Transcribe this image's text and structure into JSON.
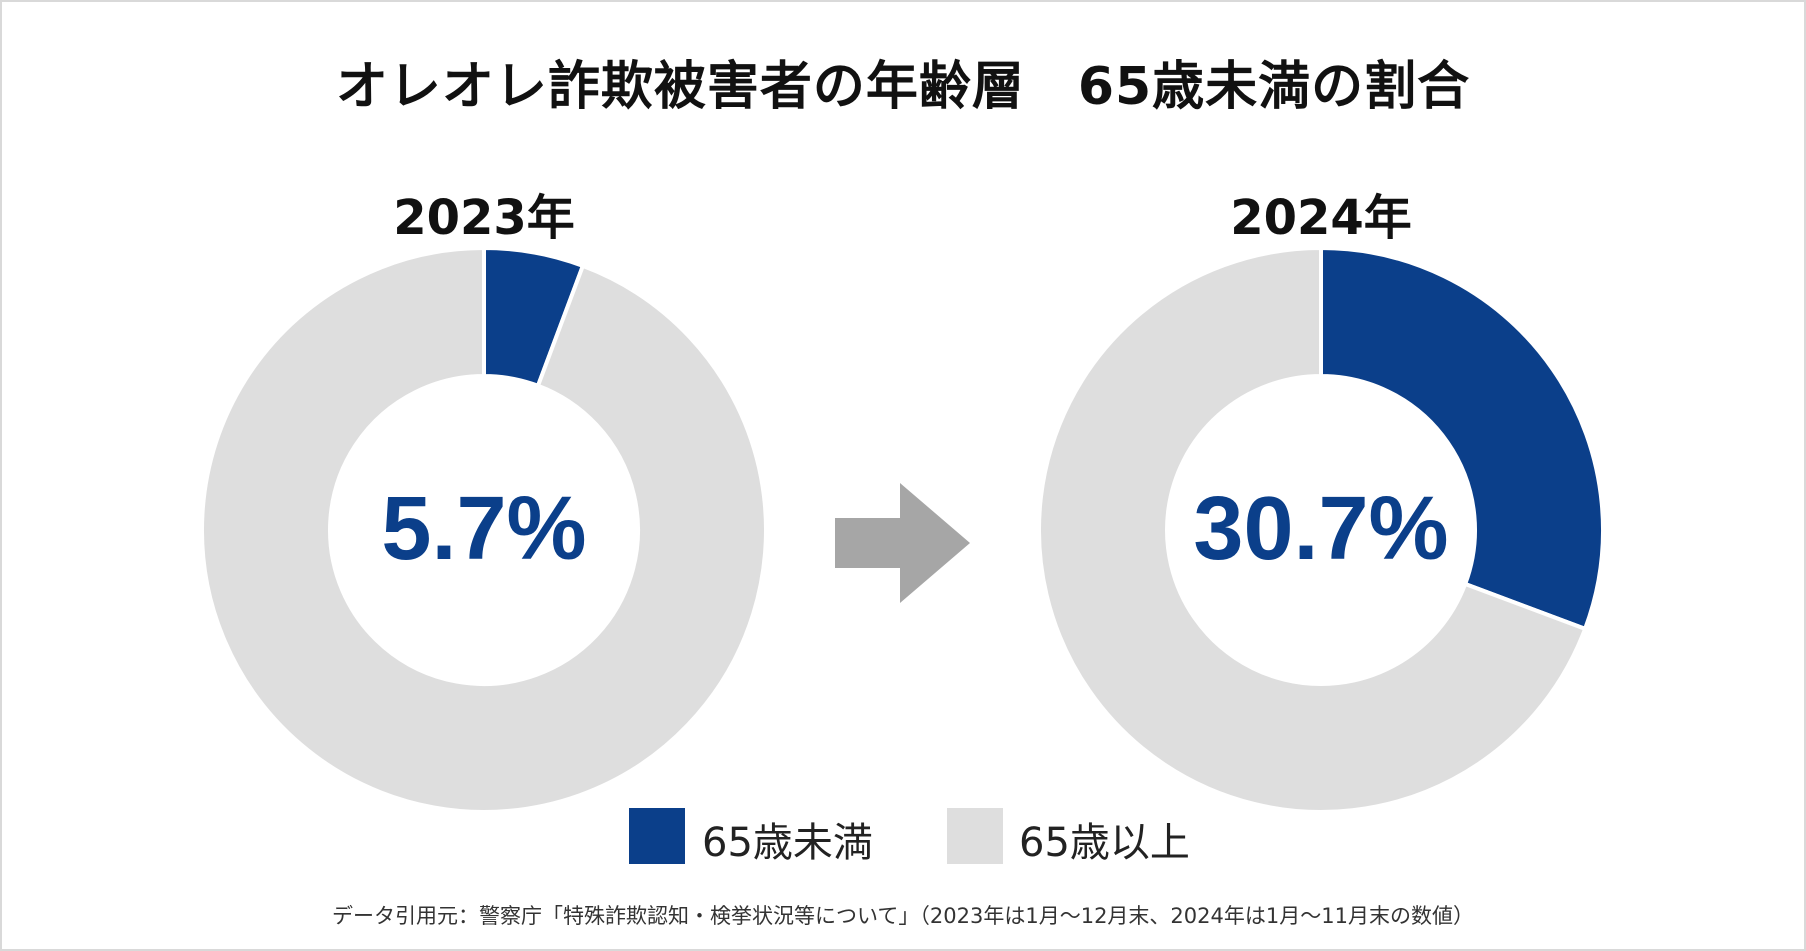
{
  "title": "オレオレ詐欺被害者の年齢層　65歳未満の割合",
  "chart_data": {
    "type": "pie",
    "charts": [
      {
        "year_label": "2023年",
        "center_label": "5.7%",
        "slices": [
          {
            "name": "65歳未満",
            "value": 5.7
          },
          {
            "name": "65歳以上",
            "value": 94.3
          }
        ]
      },
      {
        "year_label": "2024年",
        "center_label": "30.7%",
        "slices": [
          {
            "name": "65歳未満",
            "value": 30.7
          },
          {
            "name": "65歳以上",
            "value": 69.3
          }
        ]
      }
    ],
    "legend": [
      {
        "label": "65歳未満",
        "color": "#0b3f8a"
      },
      {
        "label": "65歳以上",
        "color": "#dedede"
      }
    ],
    "legend_position": "bottom"
  },
  "colors": {
    "accent": "#0b3f8a",
    "rest": "#dedede",
    "arrow": "#a6a6a6"
  },
  "source_note": "データ引用元：警察庁「特殊詐欺認知・検挙状況等について」（2023年は1月～12月末、2024年は1月～11月末の数値）"
}
